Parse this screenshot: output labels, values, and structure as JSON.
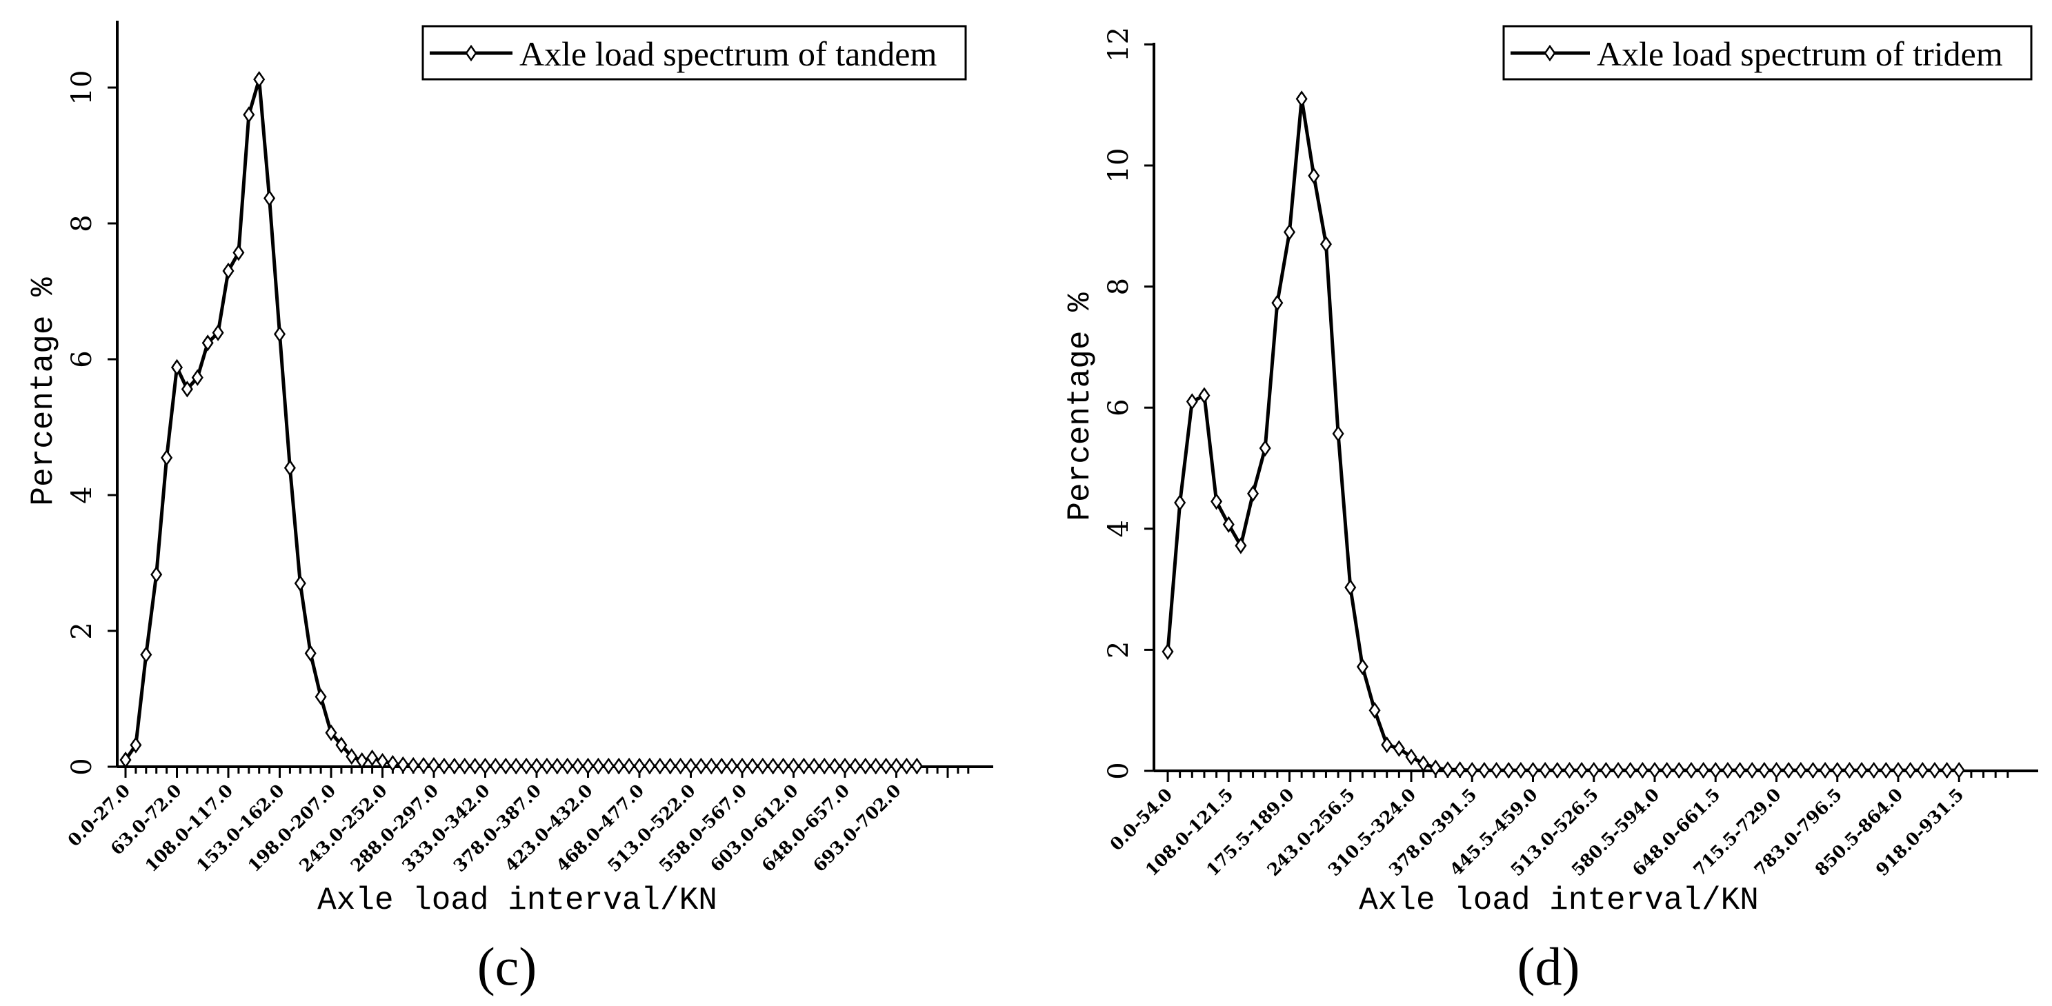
{
  "chart_data": [
    {
      "type": "line",
      "panel_label": "(c)",
      "xlabel": "Axle load interval/KN",
      "ylabel": "Percentage %",
      "ylim": [
        0,
        11
      ],
      "yticks": [
        0,
        2,
        4,
        6,
        8,
        10
      ],
      "legend": {
        "label": "Axle load spectrum of tandem",
        "placement": "top-right"
      },
      "tick_labels": [
        "0.0-27.0",
        "63.0-72.0",
        "108.0-117.0",
        "153.0-162.0",
        "198.0-207.0",
        "243.0-252.0",
        "288.0-297.0",
        "333.0-342.0",
        "378.0-387.0",
        "423.0-432.0",
        "468.0-477.0",
        "513.0-522.0",
        "558.0-567.0",
        "603.0-612.0",
        "648.0-657.0",
        "693.0-702.0"
      ],
      "tick_label_index_step": 5,
      "n_ticks": 83,
      "series": [
        {
          "name": "Axle load spectrum of tandem",
          "values": [
            0.1,
            0.32,
            1.65,
            2.83,
            4.55,
            5.88,
            5.56,
            5.73,
            6.24,
            6.39,
            7.3,
            7.57,
            9.6,
            10.12,
            8.37,
            6.37,
            4.4,
            2.7,
            1.67,
            1.03,
            0.5,
            0.32,
            0.15,
            0.09,
            0.13,
            0.08,
            0.05,
            0.03,
            0.02,
            0.02,
            0.02,
            0.01,
            0.01,
            0.01,
            0.01,
            0.01,
            0.01,
            0.01,
            0.01,
            0.01,
            0.01,
            0.01,
            0.01,
            0.01,
            0.01,
            0.01,
            0.01,
            0.01,
            0.01,
            0.01,
            0.01,
            0.01,
            0.01,
            0.01,
            0.01,
            0.01,
            0.01,
            0.01,
            0.01,
            0.01,
            0.01,
            0.01,
            0.01,
            0.01,
            0.01,
            0.01,
            0.01,
            0.01,
            0.01,
            0.01,
            0.01,
            0.01,
            0.01,
            0.01,
            0.01,
            0.01,
            0.01,
            0.01
          ]
        }
      ]
    },
    {
      "type": "line",
      "panel_label": "(d)",
      "xlabel": "Axle load interval/KN",
      "ylabel": "Percentage %",
      "ylim": [
        0,
        12
      ],
      "yticks": [
        0,
        2,
        4,
        6,
        8,
        10,
        12
      ],
      "legend": {
        "label": "Axle load spectrum of tridem",
        "placement": "top-right"
      },
      "tick_labels": [
        "0.0-54.0",
        "108.0-121.5",
        "175.5-189.0",
        "243.0-256.5",
        "310.5-324.0",
        "378.0-391.5",
        "445.5-459.0",
        "513.0-526.5",
        "580.5-594.0",
        "648.0-661.5",
        "715.5-729.0",
        "783.0-796.5",
        "850.5-864.0",
        "918.0-931.5"
      ],
      "tick_label_index_step": 5,
      "n_ticks": 70,
      "series": [
        {
          "name": "Axle load spectrum of tridem",
          "values": [
            1.97,
            4.43,
            6.1,
            6.2,
            4.45,
            4.07,
            3.72,
            4.58,
            5.33,
            7.73,
            8.9,
            11.1,
            9.83,
            8.7,
            5.57,
            3.03,
            1.72,
            1.0,
            0.43,
            0.37,
            0.23,
            0.12,
            0.05,
            0.02,
            0.02,
            0.01,
            0.01,
            0.01,
            0.01,
            0.01,
            0.01,
            0.01,
            0.01,
            0.01,
            0.01,
            0.01,
            0.01,
            0.01,
            0.01,
            0.01,
            0.01,
            0.01,
            0.01,
            0.01,
            0.01,
            0.01,
            0.01,
            0.01,
            0.01,
            0.01,
            0.01,
            0.01,
            0.01,
            0.01,
            0.01,
            0.01,
            0.01,
            0.01,
            0.01,
            0.01,
            0.01,
            0.01,
            0.01,
            0.01,
            0.01,
            0.01
          ]
        }
      ]
    }
  ]
}
